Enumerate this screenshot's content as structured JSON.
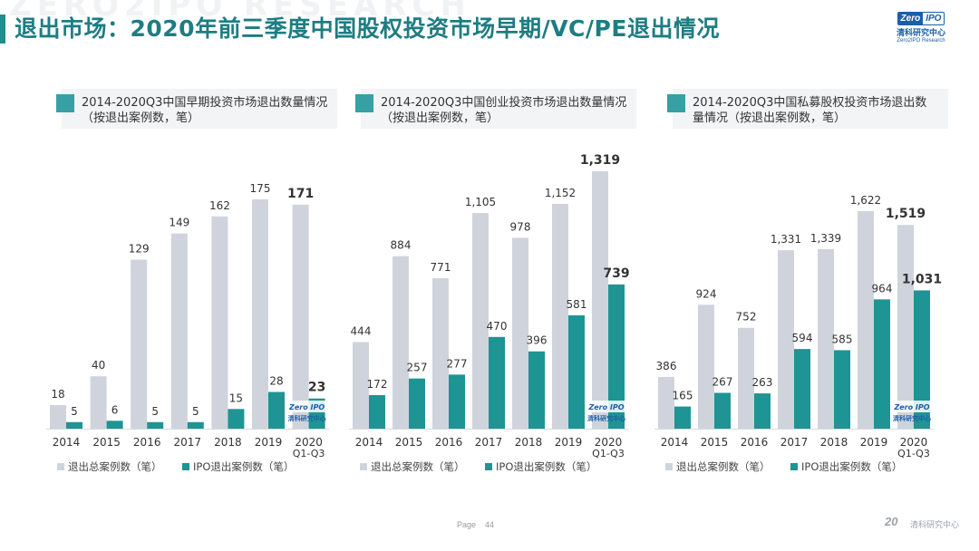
{
  "watermark": "ZERO2IPO RESEARCH",
  "title": "退出市场：2020年前三季度中国股权投资市场早期/VC/PE退出情况",
  "logo": {
    "zero": "Zero",
    "ipo": "IPO",
    "cn": "清科研究中心",
    "en": "Zero2IPO Research"
  },
  "footer": {
    "page_label": "Page",
    "page_number": "44",
    "logo_mark": "20",
    "logo_text": "清科研究中心"
  },
  "colors": {
    "total": "#cfd4dc",
    "ipo": "#1e9494",
    "title": "#1e7d82"
  },
  "chart_data": [
    {
      "type": "bar",
      "title": "2014-2020Q3中国早期投资市场退出数量情况（按退出案例数，笔）",
      "title_lines": [
        "2014-2020Q3中国早期投资市场退出数量情况",
        "（按退出案例数，笔）"
      ],
      "categories": [
        "2014",
        "2015",
        "2016",
        "2017",
        "2018",
        "2019",
        "2020 Q1-Q3"
      ],
      "category_lines": [
        [
          "2014"
        ],
        [
          "2015"
        ],
        [
          "2016"
        ],
        [
          "2017"
        ],
        [
          "2018"
        ],
        [
          "2019"
        ],
        [
          "2020",
          "Q1-Q3"
        ]
      ],
      "series": [
        {
          "name": "退出总案例数（笔）",
          "values": [
            18,
            40,
            129,
            149,
            162,
            175,
            171
          ]
        },
        {
          "name": "IPO退出案例数（笔）",
          "values": [
            5,
            6,
            5,
            5,
            15,
            28,
            23
          ]
        }
      ],
      "value_labels": [
        [
          "18",
          "40",
          "129",
          "149",
          "162",
          "175",
          "171"
        ],
        [
          "5",
          "6",
          "5",
          "5",
          "15",
          "28",
          "23"
        ]
      ],
      "legend_position": "bottom",
      "grid": false
    },
    {
      "type": "bar",
      "title": "2014-2020Q3中国创业投资市场退出数量情况（按退出案例数，笔）",
      "title_lines": [
        "2014-2020Q3中国创业投资市场退出数量情况",
        "（按退出案例数，笔）"
      ],
      "categories": [
        "2014",
        "2015",
        "2016",
        "2017",
        "2018",
        "2019",
        "2020 Q1-Q3"
      ],
      "category_lines": [
        [
          "2014"
        ],
        [
          "2015"
        ],
        [
          "2016"
        ],
        [
          "2017"
        ],
        [
          "2018"
        ],
        [
          "2019"
        ],
        [
          "2020",
          "Q1-Q3"
        ]
      ],
      "series": [
        {
          "name": "退出总案例数（笔）",
          "values": [
            444,
            884,
            771,
            1105,
            978,
            1152,
            1319
          ]
        },
        {
          "name": "IPO退出案例数（笔）",
          "values": [
            172,
            257,
            277,
            470,
            396,
            581,
            739
          ]
        }
      ],
      "value_labels": [
        [
          "444",
          "884",
          "771",
          "1,105",
          "978",
          "1,152",
          "1,319"
        ],
        [
          "172",
          "257",
          "277",
          "470",
          "396",
          "581",
          "739"
        ]
      ],
      "legend_position": "bottom",
      "grid": false
    },
    {
      "type": "bar",
      "title": "2014-2020Q3中国私募股权投资市场退出数量情况（按退出案例数，笔）",
      "title_lines": [
        "2014-2020Q3中国私募股权投资市场退出数",
        "量情况（按退出案例数，笔）"
      ],
      "categories": [
        "2014",
        "2015",
        "2016",
        "2017",
        "2018",
        "2019",
        "2020 Q1-Q3"
      ],
      "category_lines": [
        [
          "2014"
        ],
        [
          "2015"
        ],
        [
          "2016"
        ],
        [
          "2017"
        ],
        [
          "2018"
        ],
        [
          "2019"
        ],
        [
          "2020",
          "Q1-Q3"
        ]
      ],
      "series": [
        {
          "name": "退出总案例数（笔）",
          "values": [
            386,
            924,
            752,
            1331,
            1339,
            1622,
            1519
          ]
        },
        {
          "name": "IPO退出案例数（笔）",
          "values": [
            165,
            267,
            263,
            594,
            585,
            964,
            1031
          ]
        }
      ],
      "value_labels": [
        [
          "386",
          "924",
          "752",
          "1,331",
          "1,339",
          "1,622",
          "1,519"
        ],
        [
          "165",
          "267",
          "263",
          "594",
          "585",
          "964",
          "1,031"
        ]
      ],
      "legend_position": "bottom",
      "grid": false
    }
  ]
}
